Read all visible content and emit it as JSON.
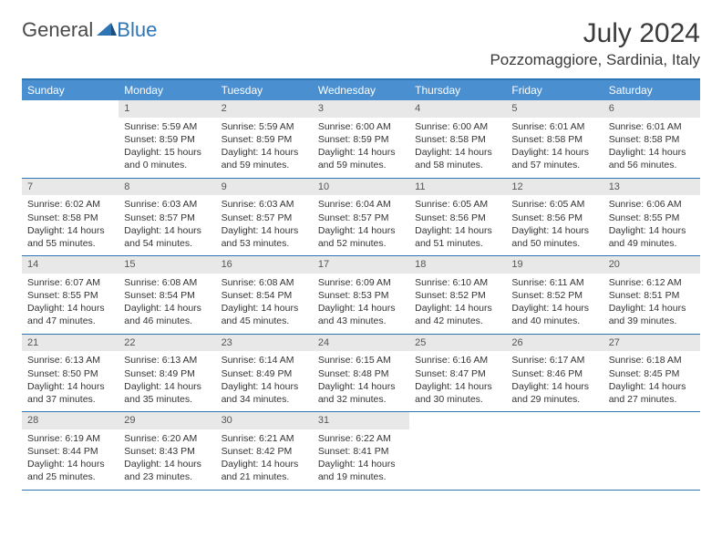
{
  "logo": {
    "part1": "General",
    "part2": "Blue"
  },
  "title": "July 2024",
  "location": "Pozzomaggiore, Sardinia, Italy",
  "colors": {
    "header_bg": "#4a8fd0",
    "border": "#2e75b6",
    "daynum_bg": "#e8e8e8",
    "text": "#333333"
  },
  "day_names": [
    "Sunday",
    "Monday",
    "Tuesday",
    "Wednesday",
    "Thursday",
    "Friday",
    "Saturday"
  ],
  "weeks": [
    [
      {
        "n": "",
        "sr": "",
        "ss": "",
        "dl": ""
      },
      {
        "n": "1",
        "sr": "Sunrise: 5:59 AM",
        "ss": "Sunset: 8:59 PM",
        "dl": "Daylight: 15 hours and 0 minutes."
      },
      {
        "n": "2",
        "sr": "Sunrise: 5:59 AM",
        "ss": "Sunset: 8:59 PM",
        "dl": "Daylight: 14 hours and 59 minutes."
      },
      {
        "n": "3",
        "sr": "Sunrise: 6:00 AM",
        "ss": "Sunset: 8:59 PM",
        "dl": "Daylight: 14 hours and 59 minutes."
      },
      {
        "n": "4",
        "sr": "Sunrise: 6:00 AM",
        "ss": "Sunset: 8:58 PM",
        "dl": "Daylight: 14 hours and 58 minutes."
      },
      {
        "n": "5",
        "sr": "Sunrise: 6:01 AM",
        "ss": "Sunset: 8:58 PM",
        "dl": "Daylight: 14 hours and 57 minutes."
      },
      {
        "n": "6",
        "sr": "Sunrise: 6:01 AM",
        "ss": "Sunset: 8:58 PM",
        "dl": "Daylight: 14 hours and 56 minutes."
      }
    ],
    [
      {
        "n": "7",
        "sr": "Sunrise: 6:02 AM",
        "ss": "Sunset: 8:58 PM",
        "dl": "Daylight: 14 hours and 55 minutes."
      },
      {
        "n": "8",
        "sr": "Sunrise: 6:03 AM",
        "ss": "Sunset: 8:57 PM",
        "dl": "Daylight: 14 hours and 54 minutes."
      },
      {
        "n": "9",
        "sr": "Sunrise: 6:03 AM",
        "ss": "Sunset: 8:57 PM",
        "dl": "Daylight: 14 hours and 53 minutes."
      },
      {
        "n": "10",
        "sr": "Sunrise: 6:04 AM",
        "ss": "Sunset: 8:57 PM",
        "dl": "Daylight: 14 hours and 52 minutes."
      },
      {
        "n": "11",
        "sr": "Sunrise: 6:05 AM",
        "ss": "Sunset: 8:56 PM",
        "dl": "Daylight: 14 hours and 51 minutes."
      },
      {
        "n": "12",
        "sr": "Sunrise: 6:05 AM",
        "ss": "Sunset: 8:56 PM",
        "dl": "Daylight: 14 hours and 50 minutes."
      },
      {
        "n": "13",
        "sr": "Sunrise: 6:06 AM",
        "ss": "Sunset: 8:55 PM",
        "dl": "Daylight: 14 hours and 49 minutes."
      }
    ],
    [
      {
        "n": "14",
        "sr": "Sunrise: 6:07 AM",
        "ss": "Sunset: 8:55 PM",
        "dl": "Daylight: 14 hours and 47 minutes."
      },
      {
        "n": "15",
        "sr": "Sunrise: 6:08 AM",
        "ss": "Sunset: 8:54 PM",
        "dl": "Daylight: 14 hours and 46 minutes."
      },
      {
        "n": "16",
        "sr": "Sunrise: 6:08 AM",
        "ss": "Sunset: 8:54 PM",
        "dl": "Daylight: 14 hours and 45 minutes."
      },
      {
        "n": "17",
        "sr": "Sunrise: 6:09 AM",
        "ss": "Sunset: 8:53 PM",
        "dl": "Daylight: 14 hours and 43 minutes."
      },
      {
        "n": "18",
        "sr": "Sunrise: 6:10 AM",
        "ss": "Sunset: 8:52 PM",
        "dl": "Daylight: 14 hours and 42 minutes."
      },
      {
        "n": "19",
        "sr": "Sunrise: 6:11 AM",
        "ss": "Sunset: 8:52 PM",
        "dl": "Daylight: 14 hours and 40 minutes."
      },
      {
        "n": "20",
        "sr": "Sunrise: 6:12 AM",
        "ss": "Sunset: 8:51 PM",
        "dl": "Daylight: 14 hours and 39 minutes."
      }
    ],
    [
      {
        "n": "21",
        "sr": "Sunrise: 6:13 AM",
        "ss": "Sunset: 8:50 PM",
        "dl": "Daylight: 14 hours and 37 minutes."
      },
      {
        "n": "22",
        "sr": "Sunrise: 6:13 AM",
        "ss": "Sunset: 8:49 PM",
        "dl": "Daylight: 14 hours and 35 minutes."
      },
      {
        "n": "23",
        "sr": "Sunrise: 6:14 AM",
        "ss": "Sunset: 8:49 PM",
        "dl": "Daylight: 14 hours and 34 minutes."
      },
      {
        "n": "24",
        "sr": "Sunrise: 6:15 AM",
        "ss": "Sunset: 8:48 PM",
        "dl": "Daylight: 14 hours and 32 minutes."
      },
      {
        "n": "25",
        "sr": "Sunrise: 6:16 AM",
        "ss": "Sunset: 8:47 PM",
        "dl": "Daylight: 14 hours and 30 minutes."
      },
      {
        "n": "26",
        "sr": "Sunrise: 6:17 AM",
        "ss": "Sunset: 8:46 PM",
        "dl": "Daylight: 14 hours and 29 minutes."
      },
      {
        "n": "27",
        "sr": "Sunrise: 6:18 AM",
        "ss": "Sunset: 8:45 PM",
        "dl": "Daylight: 14 hours and 27 minutes."
      }
    ],
    [
      {
        "n": "28",
        "sr": "Sunrise: 6:19 AM",
        "ss": "Sunset: 8:44 PM",
        "dl": "Daylight: 14 hours and 25 minutes."
      },
      {
        "n": "29",
        "sr": "Sunrise: 6:20 AM",
        "ss": "Sunset: 8:43 PM",
        "dl": "Daylight: 14 hours and 23 minutes."
      },
      {
        "n": "30",
        "sr": "Sunrise: 6:21 AM",
        "ss": "Sunset: 8:42 PM",
        "dl": "Daylight: 14 hours and 21 minutes."
      },
      {
        "n": "31",
        "sr": "Sunrise: 6:22 AM",
        "ss": "Sunset: 8:41 PM",
        "dl": "Daylight: 14 hours and 19 minutes."
      },
      {
        "n": "",
        "sr": "",
        "ss": "",
        "dl": ""
      },
      {
        "n": "",
        "sr": "",
        "ss": "",
        "dl": ""
      },
      {
        "n": "",
        "sr": "",
        "ss": "",
        "dl": ""
      }
    ]
  ]
}
